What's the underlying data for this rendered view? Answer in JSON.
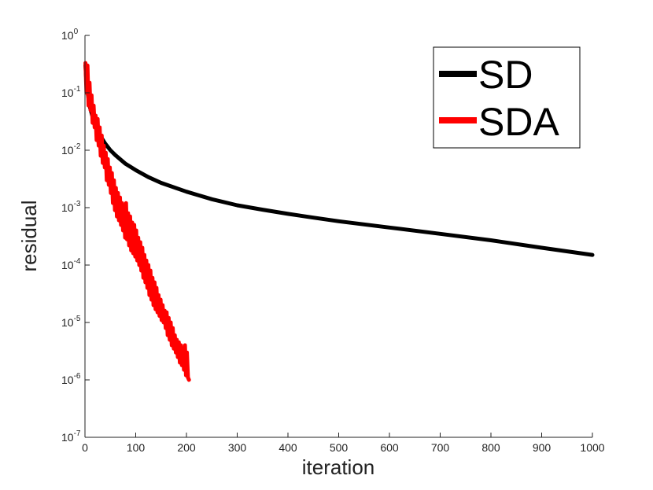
{
  "chart_data": {
    "type": "line",
    "xlabel": "iteration",
    "ylabel": "residual",
    "xlim": [
      0,
      1000
    ],
    "ylim_log10": [
      -7,
      0
    ],
    "yscale": "log",
    "grid": false,
    "legend_position": "top-right",
    "x_ticks": [
      "0",
      "100",
      "200",
      "300",
      "400",
      "500",
      "600",
      "700",
      "800",
      "900",
      "1000"
    ],
    "y_ticks": [
      {
        "base": "10",
        "exp": "0"
      },
      {
        "base": "10",
        "exp": "-1"
      },
      {
        "base": "10",
        "exp": "-2"
      },
      {
        "base": "10",
        "exp": "-3"
      },
      {
        "base": "10",
        "exp": "-4"
      },
      {
        "base": "10",
        "exp": "-5"
      },
      {
        "base": "10",
        "exp": "-6"
      },
      {
        "base": "10",
        "exp": "-7"
      }
    ],
    "series": [
      {
        "name": "SD",
        "color": "#000000",
        "x": [
          1,
          3,
          6,
          10,
          15,
          20,
          30,
          40,
          50,
          60,
          80,
          100,
          125,
          150,
          200,
          250,
          300,
          350,
          400,
          450,
          500,
          600,
          700,
          800,
          900,
          1000
        ],
        "y": [
          0.3,
          0.15,
          0.09,
          0.055,
          0.038,
          0.028,
          0.018,
          0.013,
          0.01,
          0.0082,
          0.0058,
          0.0045,
          0.0034,
          0.0027,
          0.0019,
          0.0014,
          0.0011,
          0.00092,
          0.00078,
          0.00067,
          0.00058,
          0.00045,
          0.00035,
          0.00027,
          0.0002,
          0.00015
        ]
      },
      {
        "name": "SDA",
        "color": "#ff0000",
        "x": [
          1,
          3,
          5,
          7,
          9,
          11,
          13,
          15,
          17,
          19,
          21,
          23,
          25,
          27,
          29,
          31,
          33,
          35,
          37,
          39,
          41,
          43,
          45,
          47,
          49,
          51,
          53,
          55,
          57,
          59,
          61,
          63,
          65,
          67,
          69,
          71,
          73,
          75,
          77,
          79,
          81,
          83,
          85,
          87,
          89,
          91,
          93,
          95,
          97,
          99,
          101,
          103,
          105,
          107,
          109,
          111,
          113,
          115,
          117,
          119,
          121,
          123,
          125,
          127,
          129,
          131,
          133,
          135,
          137,
          139,
          141,
          143,
          145,
          147,
          149,
          151,
          153,
          155,
          157,
          159,
          161,
          163,
          165,
          167,
          169,
          171,
          173,
          175,
          177,
          179,
          181,
          183,
          185,
          187,
          189,
          191,
          193,
          195,
          197,
          199,
          201,
          203,
          205
        ],
        "y": [
          0.33,
          0.1,
          0.3,
          0.06,
          0.15,
          0.05,
          0.09,
          0.03,
          0.06,
          0.025,
          0.04,
          0.015,
          0.035,
          0.012,
          0.025,
          0.008,
          0.018,
          0.006,
          0.012,
          0.005,
          0.009,
          0.003,
          0.007,
          0.0025,
          0.005,
          0.0018,
          0.004,
          0.0012,
          0.003,
          0.0009,
          0.0022,
          0.0007,
          0.0018,
          0.0006,
          0.0015,
          0.0005,
          0.0012,
          0.0004,
          0.001,
          0.0003,
          0.0012,
          0.00028,
          0.0008,
          0.00022,
          0.0007,
          0.00018,
          0.00055,
          0.00016,
          0.0005,
          0.00014,
          0.0004,
          0.00012,
          0.0003,
          0.0001,
          0.00025,
          8e-05,
          0.0002,
          6e-05,
          0.00015,
          5e-05,
          0.00012,
          4e-05,
          0.0001,
          3e-05,
          8e-05,
          2.5e-05,
          6e-05,
          2e-05,
          5e-05,
          1.7e-05,
          4e-05,
          1.5e-05,
          3e-05,
          1.3e-05,
          2.5e-05,
          1.1e-05,
          2e-05,
          1e-05,
          1.6e-05,
          8e-06,
          1.5e-05,
          6e-06,
          1.2e-05,
          5e-06,
          1e-05,
          4e-06,
          8e-06,
          3.5e-06,
          6e-06,
          3e-06,
          5e-06,
          2.5e-06,
          4.5e-06,
          2e-06,
          4e-06,
          1.8e-06,
          3.5e-06,
          1.5e-06,
          4e-06,
          1.2e-06,
          3e-06,
          1.1e-06,
          1e-06
        ]
      }
    ]
  }
}
